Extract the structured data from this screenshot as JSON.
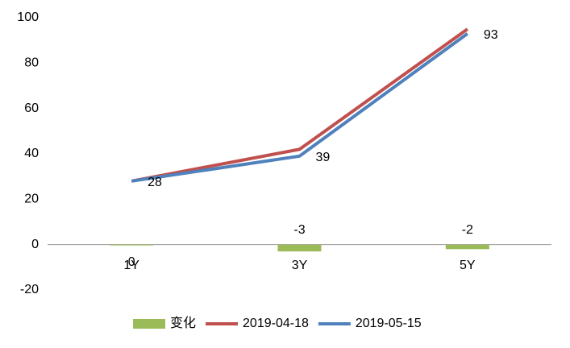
{
  "chart_data": {
    "type": "bar-line",
    "categories": [
      "1Y",
      "3Y",
      "5Y"
    ],
    "series": [
      {
        "name": "变化",
        "type": "bar",
        "color": "#9bbb59",
        "values": [
          -0.2,
          -3,
          -2
        ],
        "value_labels": [
          "0",
          "-3",
          "-2"
        ]
      },
      {
        "name": "2019-04-18",
        "type": "line",
        "color": "#c0504d",
        "values": [
          28,
          42,
          95
        ]
      },
      {
        "name": "2019-05-15",
        "type": "line",
        "color": "#4f81bd",
        "values": [
          28,
          39,
          93
        ]
      }
    ],
    "ylim": [
      -20,
      100
    ],
    "yticks": [
      -20,
      0,
      20,
      40,
      60,
      80,
      100
    ],
    "grid": false,
    "legend": "bottom"
  }
}
